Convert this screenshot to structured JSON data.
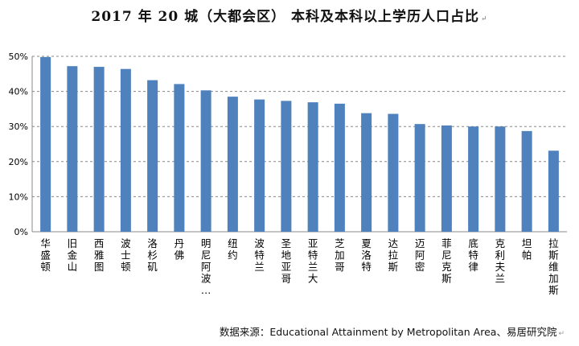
{
  "chart_data": {
    "type": "bar",
    "title": "2017 年 20 城（大都会区） 本科及本科以上学历人口占比",
    "title_mark": "↵",
    "categories": [
      "华盛顿",
      "旧金山",
      "西雅图",
      "波士顿",
      "洛杉矶",
      "丹佛",
      "明尼阿波…",
      "纽约",
      "波特兰",
      "圣地亚哥",
      "亚特兰大",
      "芝加哥",
      "夏洛特",
      "达拉斯",
      "迈阿密",
      "菲尼克斯",
      "底特律",
      "克利夫兰",
      "坦帕",
      "拉斯维加斯"
    ],
    "series": [
      {
        "values": [
          49.8,
          47.2,
          47.0,
          46.4,
          43.2,
          42.1,
          40.3,
          38.5,
          37.7,
          37.3,
          36.9,
          36.5,
          33.8,
          33.6,
          30.7,
          30.3,
          30.0,
          30.0,
          28.7,
          23.1
        ],
        "color": "#4F81BD"
      }
    ],
    "ylim": [
      0,
      50
    ],
    "yticks": [
      0,
      10,
      20,
      30,
      40,
      50
    ],
    "ytick_labels": [
      "0%",
      "10%",
      "20%",
      "30%",
      "40%",
      "50%"
    ],
    "grid": true,
    "xlabel": "",
    "ylabel": ""
  },
  "footer": {
    "source": "数据来源：Educational Attainment by Metropolitan Area、易居研究院",
    "source_mark": "↵"
  }
}
